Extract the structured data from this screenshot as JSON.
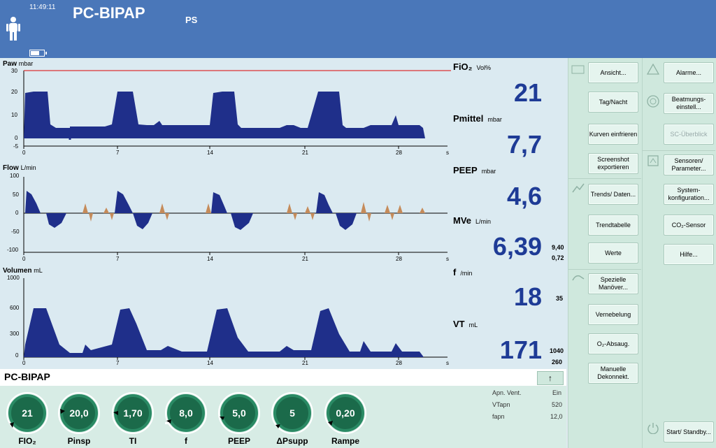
{
  "header": {
    "time": "11:49:11",
    "mode": "PC-BIPAP",
    "submode": "PS"
  },
  "panels": {
    "paw": {
      "name": "Paw",
      "unit": "mbar",
      "yticks": [
        "30",
        "20",
        "10",
        "0",
        "-5"
      ]
    },
    "flow": {
      "name": "Flow",
      "unit": "L/min",
      "yticks": [
        "100",
        "50",
        "0",
        "-50",
        "-100"
      ]
    },
    "vol": {
      "name": "Volumen",
      "unit": "mL",
      "yticks": [
        "1000",
        "600",
        "300",
        "0"
      ]
    },
    "xticks": [
      "0",
      "7",
      "14",
      "21",
      "28",
      "s"
    ]
  },
  "values": {
    "fio2": {
      "label": "FiO₂",
      "unit": "Vol%",
      "value": "21"
    },
    "pmittel": {
      "label": "Pmittel",
      "unit": "mbar",
      "value": "7,7"
    },
    "peep": {
      "label": "PEEP",
      "unit": "mbar",
      "value": "4,6"
    },
    "mve": {
      "label": "MVe",
      "unit": "L/min",
      "value": "6,39",
      "hi": "9,40",
      "lo": "0,72"
    },
    "f": {
      "label": "f",
      "unit": "/min",
      "value": "18",
      "hi": "35"
    },
    "vt": {
      "label": "VT",
      "unit": "mL",
      "value": "171",
      "hi": "1040",
      "lo": "260"
    }
  },
  "modebar": {
    "title": "PC-BIPAP",
    "up": "↑"
  },
  "knobs": [
    {
      "label": "FIO₂",
      "value": "21"
    },
    {
      "label": "Pinsp",
      "value": "20,0"
    },
    {
      "label": "TI",
      "value": "1,70"
    },
    {
      "label": "f",
      "value": "8,0"
    },
    {
      "label": "PEEP",
      "value": "5,0"
    },
    {
      "label": "ΔPsupp",
      "value": "5"
    },
    {
      "label": "Rampe",
      "value": "0,20"
    }
  ],
  "extra": [
    {
      "label": "Apn. Vent.",
      "value": "Ein"
    },
    {
      "label": "VTapn",
      "value": "520"
    },
    {
      "label": "fapn",
      "value": "12,0"
    }
  ],
  "menu": [
    "Ansicht...",
    "Tag/Nacht",
    "Kurven einfrieren",
    "Screenshot exportieren",
    "Trends/ Daten...",
    "Trendtabelle",
    "Werte",
    "Spezielle Manöver...",
    "Vernebelung",
    "O₂-Absaug.",
    "Manuelle Dekonnekt."
  ],
  "system": [
    "Alarme...",
    "Beatmungs-einstell...",
    "SC-Überblick",
    "Sensoren/ Parameter...",
    "System-konfiguration...",
    "CO₂-Sensor",
    "Hilfe...",
    "Start/ Standby..."
  ],
  "colors": {
    "header": "#4a77b9",
    "wave": "#1f2f8a",
    "flow_exp": "#c58b5a",
    "limit": "#d33",
    "value": "#1e3b96"
  }
}
